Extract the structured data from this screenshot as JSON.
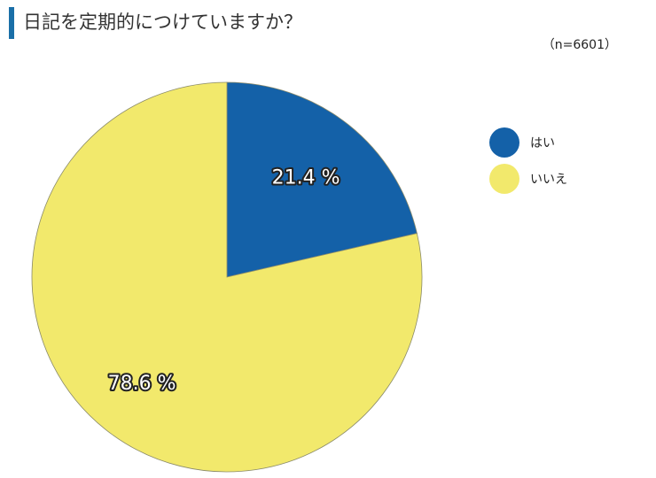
{
  "header": {
    "title": "日記を定期的につけていますか？",
    "note": "（n=6601）"
  },
  "chart_data": {
    "type": "pie",
    "slices": [
      {
        "label": "はい",
        "value": 21.4,
        "display": "21.4 %",
        "color": "#1461a8"
      },
      {
        "label": "いいえ",
        "value": 78.6,
        "display": "78.6 %",
        "color": "#f2e96c"
      }
    ],
    "start": "12 o'clock",
    "direction": "clockwise",
    "legend_position": "right"
  },
  "legend": {
    "items": [
      {
        "label": "はい",
        "color": "#1461a8"
      },
      {
        "label": "いいえ",
        "color": "#f2e96c"
      }
    ]
  }
}
